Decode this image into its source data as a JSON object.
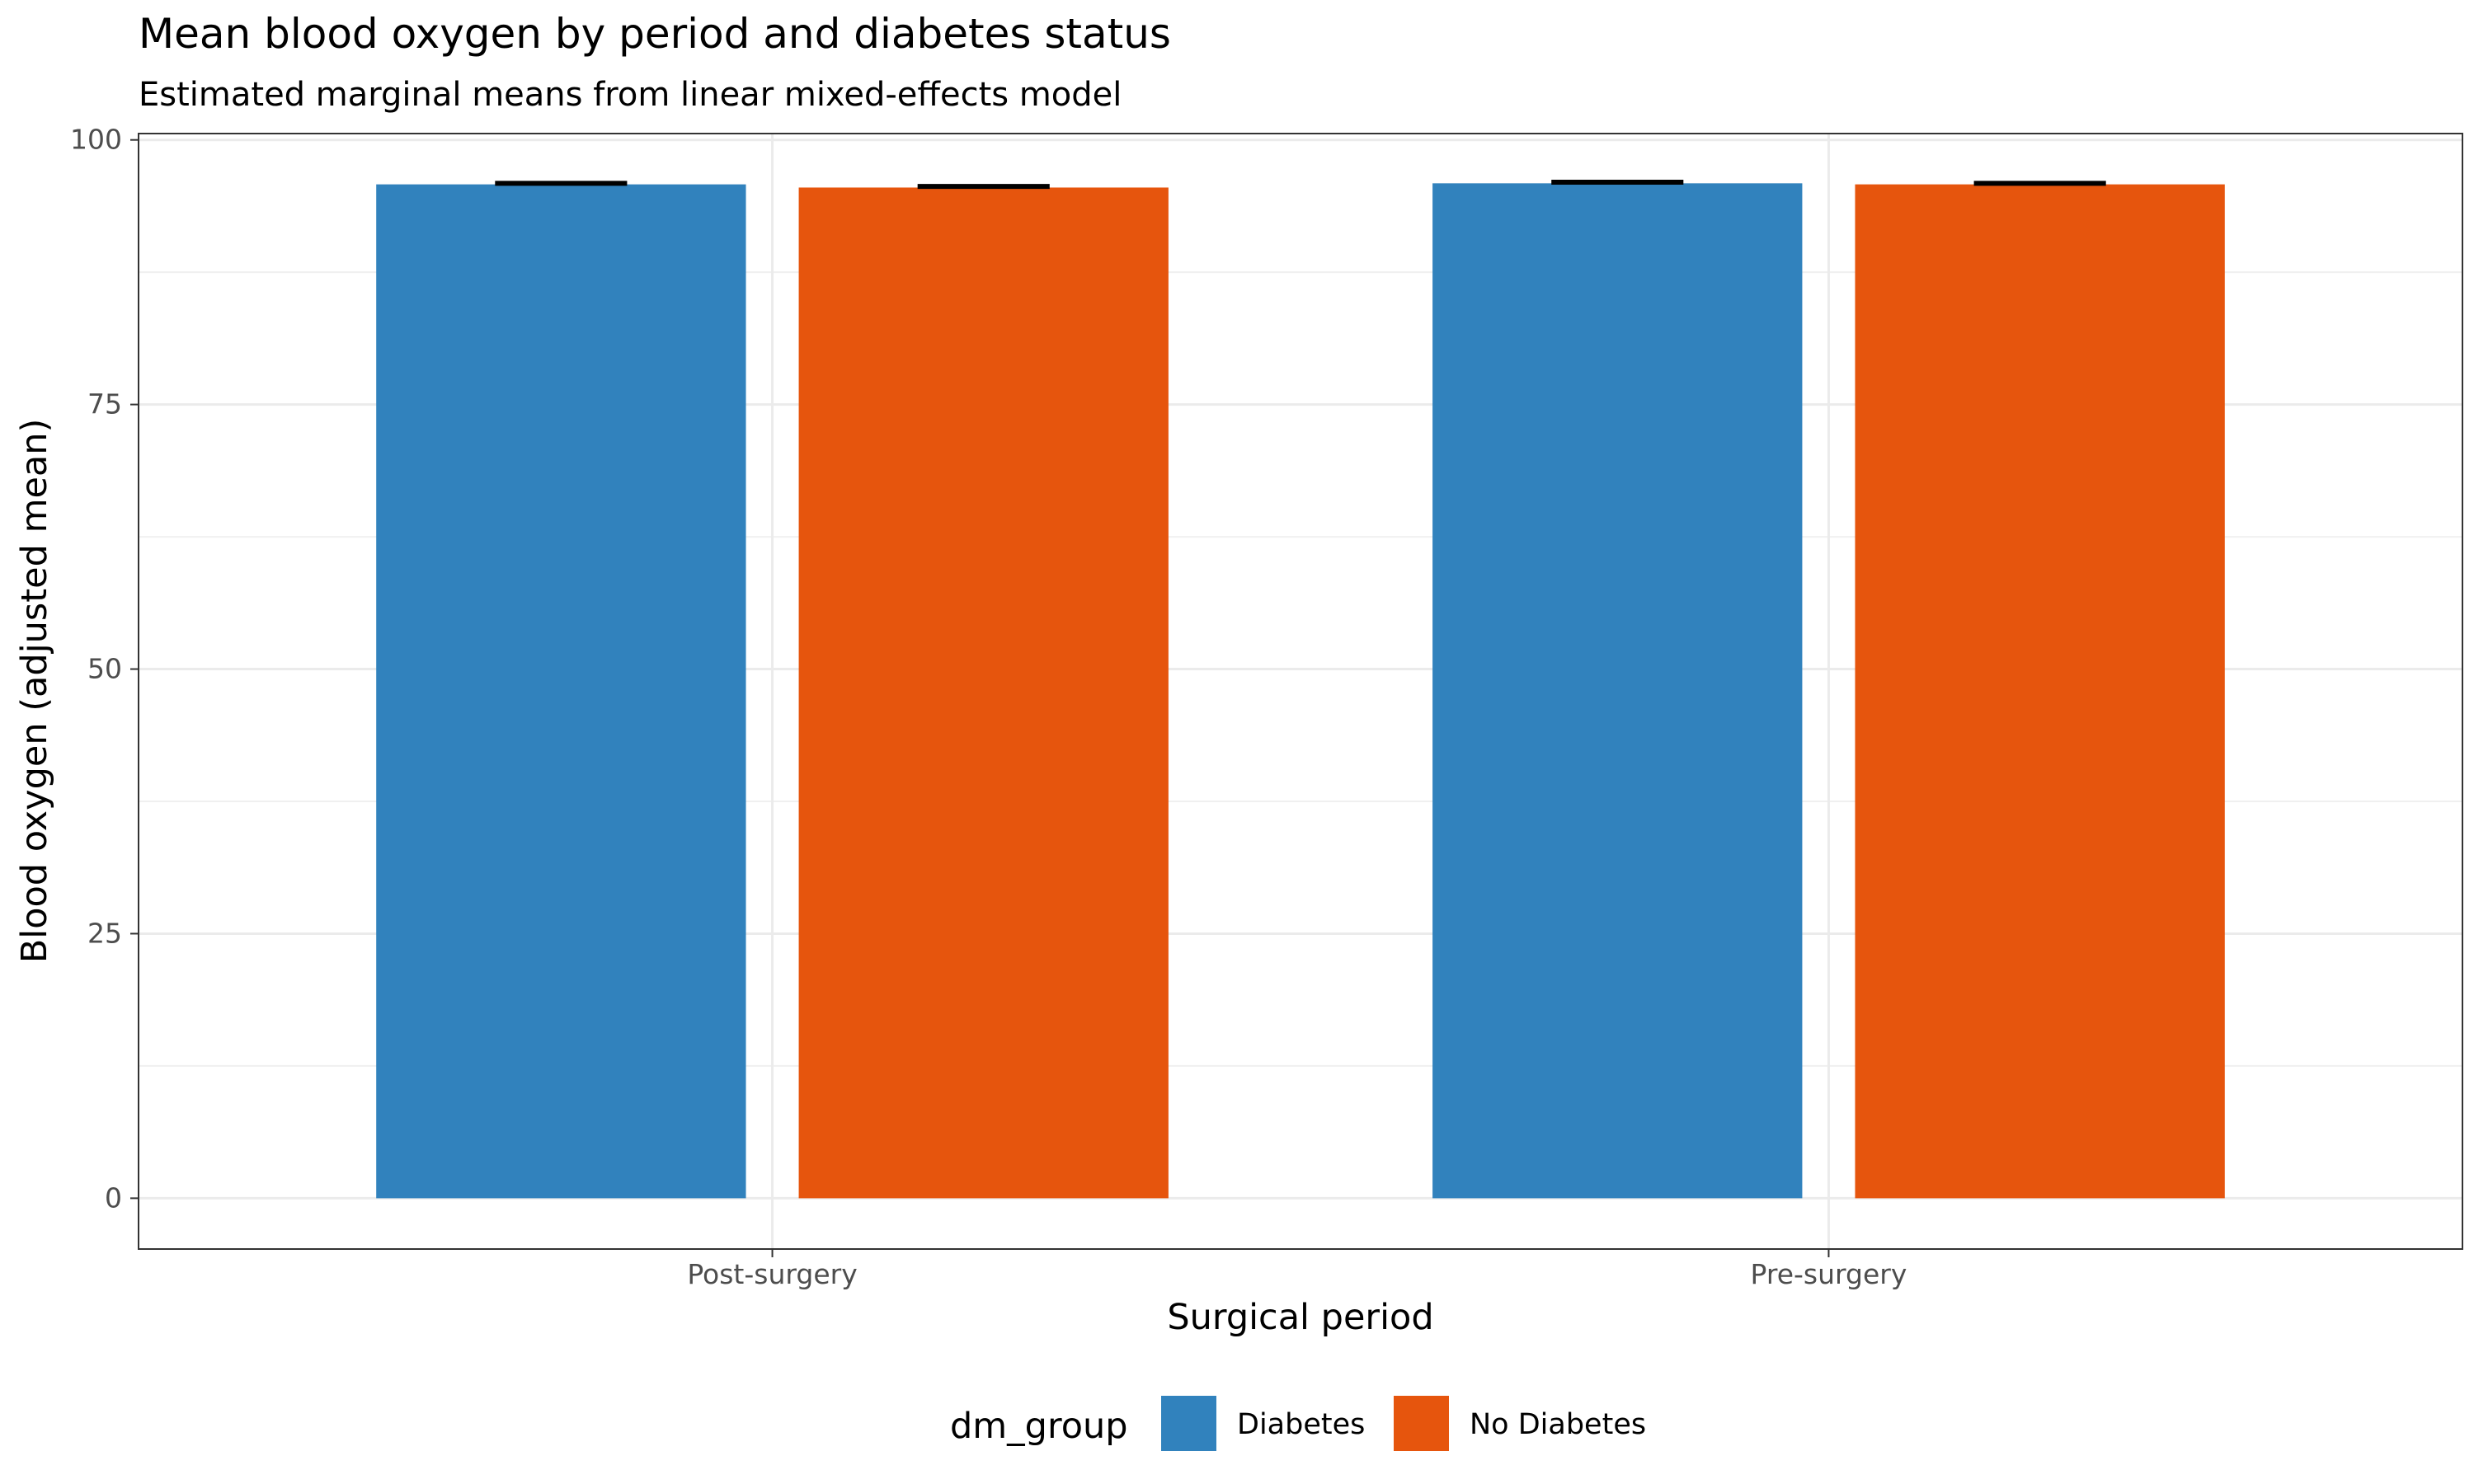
{
  "chart_data": {
    "type": "bar",
    "title": "Mean blood oxygen by period and diabetes status",
    "subtitle": "Estimated marginal means from linear mixed-effects model",
    "xlabel": "Surgical period",
    "ylabel": "Blood oxygen (adjusted mean)",
    "categories": [
      "Post-surgery",
      "Pre-surgery"
    ],
    "series": [
      {
        "name": "Diabetes",
        "values": [
          95.8,
          95.9
        ],
        "ci_upper": [
          95.9,
          96.0
        ],
        "color": "#3182bd"
      },
      {
        "name": "No Diabetes",
        "values": [
          95.5,
          95.8
        ],
        "ci_upper": [
          95.6,
          95.9
        ],
        "color": "#e6550d"
      }
    ],
    "ylim": [
      -4.8,
      100.6
    ],
    "yticks": [
      0,
      25,
      50,
      75,
      100
    ],
    "ytick_labels": [
      "0",
      "25",
      "50",
      "75",
      "100"
    ],
    "grid": true,
    "legend": {
      "title": "dm_group",
      "position": "bottom"
    }
  }
}
